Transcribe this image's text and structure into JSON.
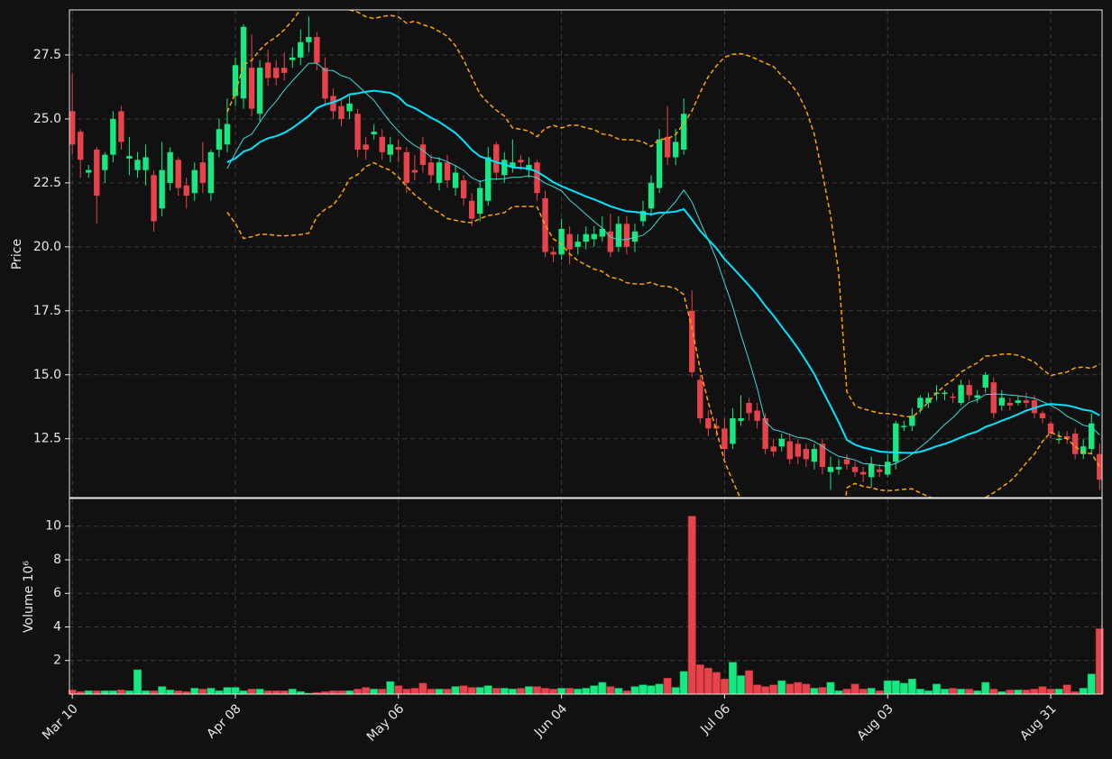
{
  "chart_data": [
    {
      "type": "candlestick",
      "ylabel": "Price",
      "up_color": "#16e882",
      "down_color": "#e8434b",
      "grid": true,
      "xlim": [
        -0.35,
        126.3
      ],
      "ylim": [
        10.2,
        29.26
      ],
      "yticks": [
        {
          "value": 12.5,
          "label": "12.5"
        },
        {
          "value": 15,
          "label": "15.0"
        },
        {
          "value": 17.5,
          "label": "17.5"
        },
        {
          "value": 20,
          "label": "20.0"
        },
        {
          "value": 22.5,
          "label": "22.5"
        },
        {
          "value": 25,
          "label": "25.0"
        },
        {
          "value": 27.5,
          "label": "27.5"
        }
      ],
      "open": [
        25.3,
        24.5,
        22.9,
        23.8,
        23.0,
        23.6,
        25.3,
        23.45,
        23.0,
        23.0,
        22.8,
        21.5,
        22.5,
        23.4,
        22.4,
        22.1,
        23.3,
        22.1,
        23.8,
        24.0,
        25.9,
        25.8,
        27.0,
        25.2,
        27.2,
        27.0,
        27.0,
        27.3,
        27.4,
        28.0,
        28.2,
        27.0,
        25.9,
        25.5,
        25.3,
        25.2,
        24.0,
        24.4,
        24.3,
        23.6,
        23.9,
        23.7,
        23.0,
        24.0,
        23.3,
        22.5,
        23.3,
        22.3,
        22.6,
        21.8,
        21.3,
        21.8,
        24.0,
        22.8,
        23.1,
        23.4,
        23.0,
        23.3,
        21.9,
        19.8,
        19.7,
        20.5,
        20.0,
        20.2,
        20.3,
        20.4,
        20.6,
        20.0,
        20.9,
        20.2,
        21.0,
        21.5,
        22.3,
        24.3,
        23.5,
        23.8,
        17.5,
        14.8,
        13.3,
        13.0,
        12.9,
        12.3,
        13.2,
        13.9,
        13.6,
        13.3,
        12.2,
        12.2,
        12.4,
        12.3,
        12.1,
        11.6,
        12.3,
        11.2,
        11.3,
        11.7,
        11.4,
        11.2,
        11.0,
        11.3,
        11.1,
        11.6,
        12.95,
        13.0,
        13.7,
        13.9,
        14.25,
        14.25,
        14.15,
        13.9,
        14.6,
        14.1,
        14.5,
        14.7,
        13.8,
        13.9,
        13.9,
        14.0,
        14.0,
        13.5,
        13.1,
        12.45,
        12.6,
        12.7,
        11.9,
        12.1,
        11.9
      ],
      "high": [
        26.8,
        24.6,
        23.2,
        23.9,
        23.7,
        25.3,
        25.5,
        24.3,
        23.7,
        24.0,
        23.0,
        24.1,
        23.9,
        23.5,
        22.7,
        23.3,
        24.1,
        23.8,
        25.0,
        25.8,
        27.4,
        28.7,
        28.3,
        27.3,
        27.7,
        27.3,
        27.6,
        27.8,
        28.5,
        29.0,
        28.4,
        27.4,
        26.2,
        25.8,
        25.9,
        25.4,
        24.3,
        24.8,
        24.6,
        24.3,
        24.2,
        23.9,
        23.6,
        24.3,
        23.6,
        23.5,
        23.6,
        23.2,
        22.8,
        22.1,
        22.6,
        23.9,
        24.1,
        23.7,
        24.2,
        23.6,
        23.5,
        23.4,
        22.2,
        20.0,
        21.1,
        20.8,
        20.5,
        20.8,
        20.8,
        21.2,
        21.3,
        21.2,
        21.2,
        20.9,
        21.8,
        22.8,
        24.6,
        25.5,
        24.6,
        25.8,
        18.3,
        15.0,
        13.6,
        13.3,
        13.3,
        13.7,
        14.2,
        14.1,
        13.9,
        13.5,
        12.5,
        12.7,
        12.7,
        12.5,
        12.3,
        12.3,
        12.5,
        11.8,
        11.7,
        11.9,
        11.6,
        11.4,
        11.8,
        11.5,
        11.9,
        13.2,
        13.2,
        13.7,
        14.2,
        14.3,
        14.6,
        14.4,
        14.3,
        14.8,
        14.8,
        14.4,
        15.1,
        14.9,
        14.4,
        14.1,
        14.2,
        14.3,
        14.2,
        13.6,
        13.2,
        12.8,
        12.8,
        12.9,
        12.5,
        13.5,
        12.3
      ],
      "low": [
        23.6,
        22.7,
        22.7,
        20.9,
        22.5,
        23.3,
        23.8,
        22.8,
        22.7,
        22.4,
        20.6,
        21.2,
        22.2,
        22.0,
        21.5,
        21.8,
        22.1,
        21.8,
        23.5,
        23.7,
        25.5,
        25.4,
        25.1,
        24.9,
        26.3,
        26.3,
        26.5,
        27.0,
        27.1,
        27.6,
        26.9,
        25.5,
        25.0,
        24.7,
        25.0,
        23.5,
        23.4,
        24.2,
        23.4,
        23.3,
        23.3,
        22.1,
        22.6,
        22.9,
        22.5,
        22.2,
        22.3,
        22.0,
        21.6,
        20.8,
        21.0,
        21.6,
        22.6,
        22.5,
        22.9,
        23.0,
        22.7,
        21.8,
        19.6,
        19.4,
        19.5,
        19.3,
        19.7,
        19.9,
        20.0,
        20.2,
        19.6,
        19.8,
        19.7,
        19.8,
        20.8,
        21.2,
        22.1,
        23.2,
        23.2,
        23.6,
        14.9,
        13.1,
        12.6,
        12.6,
        11.7,
        12.1,
        13.0,
        13.2,
        12.9,
        11.9,
        11.8,
        12.0,
        11.5,
        11.5,
        11.4,
        11.3,
        11.1,
        10.5,
        11.1,
        11.3,
        11.0,
        10.8,
        10.6,
        11.0,
        11.0,
        11.3,
        12.8,
        12.8,
        13.5,
        13.7,
        14.0,
        14.0,
        13.9,
        13.8,
        14.0,
        13.9,
        14.3,
        13.3,
        13.6,
        13.6,
        13.8,
        13.7,
        13.3,
        13.1,
        12.5,
        12.3,
        12.3,
        11.7,
        11.7,
        11.9,
        10.5
      ],
      "close": [
        24.0,
        23.4,
        23.0,
        22.0,
        23.6,
        25.0,
        24.1,
        23.55,
        23.4,
        23.5,
        21.0,
        23.0,
        23.7,
        22.3,
        22.0,
        23.0,
        22.5,
        23.7,
        24.6,
        24.8,
        27.1,
        28.6,
        25.4,
        27.0,
        26.6,
        26.6,
        26.8,
        27.4,
        28.0,
        28.2,
        27.2,
        25.8,
        25.3,
        25.0,
        25.6,
        23.8,
        23.8,
        24.5,
        23.7,
        24.0,
        23.8,
        22.5,
        22.9,
        23.2,
        22.8,
        23.3,
        22.6,
        22.9,
        21.9,
        21.1,
        22.3,
        23.5,
        22.9,
        23.4,
        23.3,
        23.3,
        23.2,
        22.1,
        19.8,
        19.7,
        20.7,
        19.9,
        20.2,
        20.5,
        20.5,
        20.7,
        19.8,
        20.9,
        20.0,
        20.6,
        21.4,
        22.5,
        24.2,
        23.5,
        24.1,
        25.2,
        15.1,
        13.3,
        12.9,
        12.9,
        12.1,
        13.3,
        13.3,
        13.5,
        13.2,
        12.1,
        12.0,
        12.5,
        11.7,
        11.8,
        11.7,
        12.1,
        11.4,
        11.4,
        11.4,
        11.5,
        11.2,
        11.1,
        11.5,
        11.2,
        11.6,
        13.1,
        13.0,
        13.4,
        14.1,
        14.1,
        14.3,
        14.3,
        14.1,
        14.6,
        14.2,
        14.2,
        15.0,
        13.5,
        14.1,
        13.8,
        14.0,
        13.9,
        13.5,
        13.3,
        12.7,
        12.5,
        12.5,
        11.9,
        12.2,
        13.1,
        10.9
      ]
    },
    {
      "type": "volume",
      "ylabel": "Volume  10⁶",
      "grid": true,
      "xlim": [
        -0.35,
        126.3
      ],
      "ylim": [
        0,
        11.65
      ],
      "xticks": [
        {
          "value": 0,
          "label": "Mar 10"
        },
        {
          "value": 20,
          "label": "Apr 08"
        },
        {
          "value": 40,
          "label": "May 06"
        },
        {
          "value": 60,
          "label": "Jun 04"
        },
        {
          "value": 80,
          "label": "Jul 06"
        },
        {
          "value": 100,
          "label": "Aug 03"
        },
        {
          "value": 120,
          "label": "Aug 31"
        }
      ],
      "yticks": [
        2,
        4,
        6,
        8,
        10
      ],
      "values": [
        0.25,
        0.15,
        0.2,
        0.2,
        0.2,
        0.2,
        0.25,
        0.2,
        1.45,
        0.2,
        0.2,
        0.45,
        0.25,
        0.2,
        0.15,
        0.35,
        0.3,
        0.35,
        0.2,
        0.4,
        0.4,
        0.2,
        0.3,
        0.3,
        0.2,
        0.2,
        0.2,
        0.3,
        0.15,
        0.05,
        0.1,
        0.15,
        0.2,
        0.2,
        0.2,
        0.3,
        0.4,
        0.3,
        0.3,
        0.75,
        0.5,
        0.3,
        0.35,
        0.65,
        0.3,
        0.3,
        0.3,
        0.45,
        0.5,
        0.4,
        0.4,
        0.5,
        0.35,
        0.35,
        0.3,
        0.35,
        0.45,
        0.45,
        0.35,
        0.3,
        0.35,
        0.35,
        0.3,
        0.35,
        0.5,
        0.7,
        0.45,
        0.35,
        0.2,
        0.45,
        0.55,
        0.5,
        0.6,
        0.95,
        0.4,
        1.35,
        10.6,
        1.75,
        1.55,
        1.3,
        0.9,
        1.9,
        1.1,
        1.4,
        0.55,
        0.45,
        0.55,
        0.8,
        0.6,
        0.7,
        0.6,
        0.35,
        0.4,
        0.7,
        0.2,
        0.3,
        0.6,
        0.3,
        0.35,
        0.2,
        0.8,
        0.8,
        0.65,
        0.9,
        0.3,
        0.2,
        0.6,
        0.3,
        0.35,
        0.3,
        0.3,
        0.2,
        0.7,
        0.3,
        0.15,
        0.25,
        0.25,
        0.25,
        0.3,
        0.45,
        0.3,
        0.3,
        0.55,
        0.15,
        0.35,
        1.2,
        3.9
      ]
    }
  ]
}
